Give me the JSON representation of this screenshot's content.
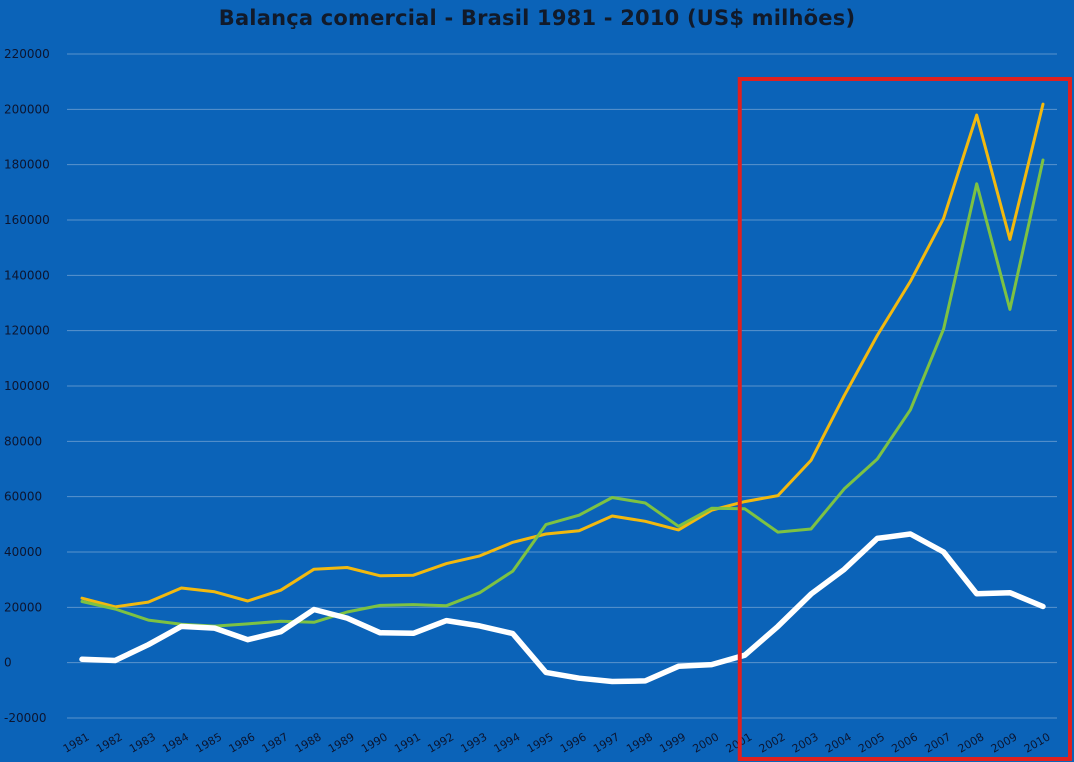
{
  "chart_data": {
    "type": "line",
    "title": "Balança comercial - Brasil 1981 - 2010 (US$ milhões)",
    "xlabel": "",
    "ylabel": "",
    "ylim": [
      -20000,
      220000
    ],
    "yticks": [
      -20000,
      0,
      20000,
      40000,
      60000,
      80000,
      100000,
      120000,
      140000,
      160000,
      180000,
      200000,
      220000
    ],
    "ytick_labels": [
      "-20000",
      "0",
      "20000",
      "40000",
      "60000",
      "80000",
      "100000",
      "120000",
      "140000",
      "160000",
      "180000",
      "200000",
      "220000"
    ],
    "grid": true,
    "x": [
      "1981",
      "1982",
      "1983",
      "1984",
      "1985",
      "1986",
      "1987",
      "1988",
      "1989",
      "1990",
      "1991",
      "1992",
      "1993",
      "1994",
      "1995",
      "1996",
      "1997",
      "1998",
      "1999",
      "2000",
      "2001",
      "2002",
      "2003",
      "2004",
      "2005",
      "2006",
      "2007",
      "2008",
      "2009",
      "2010"
    ],
    "series": [
      {
        "color": "#f2b90f",
        "values": [
          23300,
          20200,
          21900,
          27000,
          25600,
          22300,
          26200,
          33800,
          34400,
          31400,
          31600,
          35800,
          38600,
          43500,
          46500,
          47700,
          53000,
          51100,
          48000,
          55100,
          58200,
          60400,
          73100,
          96500,
          118300,
          137800,
          160600,
          197900,
          153000,
          201900
        ]
      },
      {
        "color": "#7dc243",
        "values": [
          22100,
          19400,
          15400,
          13900,
          13200,
          14000,
          15000,
          14600,
          18300,
          20700,
          21000,
          20600,
          25300,
          33100,
          49900,
          53300,
          59700,
          57700,
          49300,
          55800,
          55600,
          47200,
          48300,
          62800,
          73600,
          91400,
          120600,
          173100,
          127700,
          181700
        ]
      },
      {
        "color": "#ffffff",
        "values": [
          1200,
          800,
          6500,
          13100,
          12500,
          8300,
          11200,
          19200,
          16100,
          10800,
          10600,
          15200,
          13300,
          10500,
          -3500,
          -5600,
          -6800,
          -6600,
          -1300,
          -700,
          2700,
          13100,
          24800,
          33700,
          44900,
          46500,
          40000,
          24900,
          25300,
          20300
        ]
      }
    ],
    "highlight_box": {
      "color": "#e0201f",
      "from": "2001",
      "to": "2010"
    }
  }
}
